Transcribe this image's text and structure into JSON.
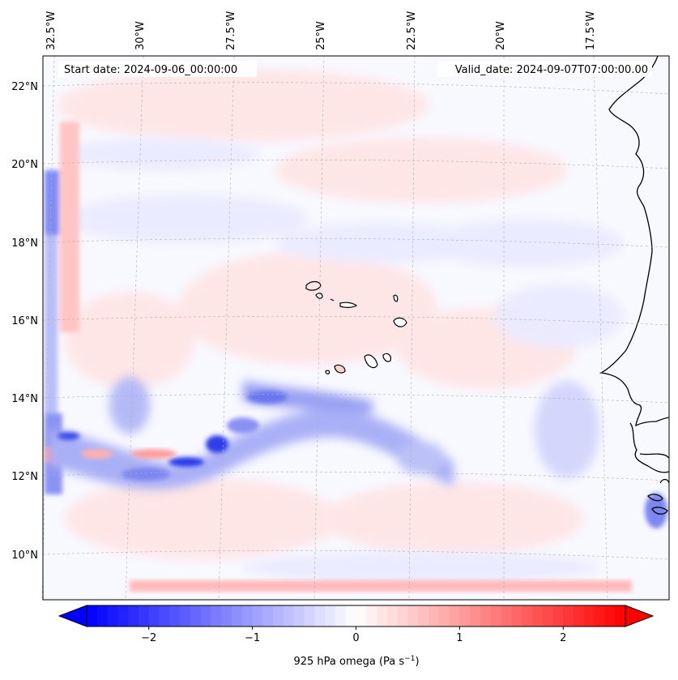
{
  "header": {
    "start_date": "Start date: 2024-09-06_00:00:00",
    "valid_date": "Valid_date: 2024-09-07T07:00:00.00"
  },
  "map": {
    "lon_ticks": [
      "32.5°W",
      "30°W",
      "27.5°W",
      "25°W",
      "22.5°W",
      "20°W",
      "17.5°W"
    ],
    "lat_ticks": [
      "22°N",
      "20°N",
      "18°N",
      "16°N",
      "14°N",
      "12°N",
      "10°N"
    ],
    "gridlines": true,
    "field": "925 hPa omega",
    "region": "Cabo Verde and West African coast (Senegal / Gambia / Guinea-Bissau)"
  },
  "colorbar": {
    "label_text": "925 hPa omega (Pa s",
    "label_sup": "−1",
    "label_close": ")",
    "ticks": [
      "−2",
      "−1",
      "0",
      "1",
      "2"
    ],
    "tick_values": [
      -2,
      -1,
      0,
      1,
      2
    ],
    "range": [
      -2.6,
      2.6
    ],
    "colormap": "bwr",
    "low_color": "#0000ff",
    "mid_color": "#ffffff",
    "high_color": "#ff0000",
    "extend": "both"
  }
}
